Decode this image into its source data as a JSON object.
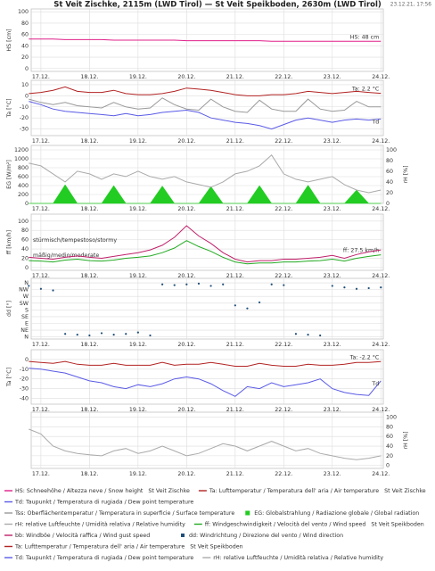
{
  "header": {
    "title": "St Veit Zischke, 2115m (LWD Tirol) — St Veit Speikboden, 2630m (LWD Tirol)",
    "timestamp": "23.12.21, 17:56"
  },
  "time": {
    "x": [
      16.75,
      17,
      17.25,
      17.5,
      17.75,
      18,
      18.25,
      18.5,
      18.75,
      19,
      19.25,
      19.5,
      19.75,
      20,
      20.25,
      20.5,
      20.75,
      21,
      21.25,
      21.5,
      21.75,
      22,
      22.25,
      22.5,
      22.75,
      23,
      23.25,
      23.5,
      23.75,
      24
    ],
    "xlim": [
      16.8,
      24.05
    ],
    "xticks": [
      {
        "value": 17,
        "label": "17.12."
      },
      {
        "value": 18,
        "label": "18.12."
      },
      {
        "value": 19,
        "label": "19.12."
      },
      {
        "value": 20,
        "label": "20.12."
      },
      {
        "value": 21,
        "label": "21.12."
      },
      {
        "value": 22,
        "label": "22.12."
      },
      {
        "value": 23,
        "label": "23.12."
      },
      {
        "value": 24,
        "label": "24.12."
      }
    ]
  },
  "chart_data": [
    {
      "type": "line",
      "ylabel": "HS [cm]",
      "ylim": [
        -5,
        105
      ],
      "yticks": [
        0,
        20,
        40,
        60,
        80,
        100
      ],
      "grid": true,
      "series": [
        {
          "name": "HS: Schneehöhe / Altezza neve / Snow height",
          "station": "St Veit Zischke",
          "color": "#e0208a",
          "end_label": "HS: 48 cm",
          "values": [
            52,
            52,
            52,
            51,
            51,
            51,
            51,
            50,
            50,
            50,
            50,
            50,
            50,
            49,
            49,
            49,
            49,
            49,
            49,
            49,
            48,
            48,
            48,
            48,
            48,
            48,
            48,
            48,
            48,
            48
          ]
        }
      ]
    },
    {
      "type": "line",
      "ylabel": "Ta [°C]",
      "ylim": [
        -36,
        14
      ],
      "yticks": [
        10,
        0,
        -10,
        -20,
        -30
      ],
      "grid": true,
      "series": [
        {
          "name": "Ta: Lufttemperatur / Temperatura dell' aria / Air temperature",
          "station": "St Veit Zischke",
          "color": "#b22222",
          "end_label": "Ta: 2.2 °C",
          "values": [
            2,
            3,
            5,
            8,
            4,
            3,
            3,
            5,
            2,
            1,
            1,
            2,
            4,
            7,
            6,
            5,
            3,
            1,
            0,
            0,
            1,
            1,
            2,
            4,
            3,
            2,
            3,
            4,
            3,
            2.2
          ]
        },
        {
          "name": "Td: Taupunkt / Temperatura di rugiada / Dew point temperature",
          "color": "#5a5ae6",
          "end_label": "Td",
          "values": [
            -5,
            -8,
            -12,
            -14,
            -15,
            -16,
            -17,
            -18,
            -16,
            -18,
            -17,
            -15,
            -14,
            -13,
            -15,
            -20,
            -22,
            -24,
            -25,
            -27,
            -30,
            -26,
            -22,
            -20,
            -22,
            -24,
            -22,
            -21,
            -22,
            -21
          ]
        },
        {
          "name": "Tss: Oberflächentemperatur / Temperatura in superficie / Surface temperature",
          "color": "#999999",
          "values": [
            -3,
            -6,
            -8,
            -6,
            -9,
            -10,
            -11,
            -6,
            -10,
            -12,
            -11,
            -2,
            -8,
            -12,
            -13,
            -3,
            -10,
            -14,
            -15,
            -4,
            -12,
            -14,
            -14,
            -3,
            -12,
            -14,
            -13,
            -5,
            -10,
            -10
          ]
        }
      ]
    },
    {
      "type": "line",
      "ylabel": "EG [W/m²]",
      "ylim": [
        0,
        1300
      ],
      "yticks": [
        0,
        200,
        400,
        600,
        800,
        1000,
        1200
      ],
      "y2label": "rH [%]",
      "y2lim": [
        0,
        108
      ],
      "y2ticks": [
        0,
        20,
        40,
        60,
        80,
        100
      ],
      "grid": true,
      "series": [
        {
          "name": "EG: Globalstrahlung / Radiazione globale / Global radiation",
          "color": "#22cc22",
          "style": "area",
          "values": [
            0,
            0,
            0,
            420,
            0,
            0,
            0,
            400,
            0,
            0,
            0,
            390,
            0,
            0,
            0,
            380,
            0,
            0,
            0,
            400,
            0,
            0,
            0,
            410,
            0,
            0,
            0,
            300,
            0,
            0
          ]
        },
        {
          "name": "rH: relative Luftfeuchte / Umidità relativa / Relative humidity",
          "color": "#aaaaaa",
          "axis": "y2",
          "values": [
            75,
            70,
            55,
            40,
            60,
            55,
            45,
            55,
            50,
            60,
            50,
            45,
            50,
            40,
            35,
            30,
            40,
            55,
            60,
            70,
            90,
            55,
            45,
            40,
            45,
            50,
            35,
            25,
            20,
            25
          ]
        }
      ]
    },
    {
      "type": "line",
      "ylabel": "ff [km/h]",
      "ylim": [
        -6,
        115
      ],
      "yticks": [
        0,
        20,
        40,
        60,
        80,
        100
      ],
      "grid": true,
      "annotations": [
        "stürmisch/tempestoso/stormy",
        "mäßig/medio/moderate"
      ],
      "series": [
        {
          "name": "ff: Windgeschwindigkeit / Velocità del vento / Wind speed",
          "station": "St Veit Speikboden",
          "color": "#22aa22",
          "end_label": "ff: 27.5 km/h",
          "values": [
            15,
            14,
            12,
            16,
            18,
            15,
            14,
            16,
            20,
            22,
            25,
            32,
            42,
            58,
            45,
            35,
            22,
            12,
            8,
            10,
            10,
            12,
            12,
            14,
            15,
            18,
            14,
            20,
            24,
            27.5
          ]
        },
        {
          "name": "bb: Windböe / Velocità raffica / Wind gust speed",
          "color": "#c0206a",
          "values": [
            22,
            20,
            18,
            22,
            25,
            22,
            20,
            24,
            28,
            32,
            38,
            48,
            65,
            90,
            68,
            52,
            32,
            18,
            12,
            15,
            15,
            18,
            18,
            20,
            22,
            26,
            20,
            28,
            34,
            38
          ]
        }
      ]
    },
    {
      "type": "scatter",
      "ylabel": "dd [°]",
      "ylim": [
        -14,
        390
      ],
      "yticks": [
        {
          "value": 360,
          "label": "N"
        },
        {
          "value": 315,
          "label": "NW"
        },
        {
          "value": 270,
          "label": "W"
        },
        {
          "value": 225,
          "label": "SW"
        },
        {
          "value": 180,
          "label": "S"
        },
        {
          "value": 135,
          "label": "SE"
        },
        {
          "value": 90,
          "label": "E"
        },
        {
          "value": 45,
          "label": "NE"
        },
        {
          "value": 0,
          "label": "N"
        }
      ],
      "grid": true,
      "series": [
        {
          "name": "dd: Windrichtung / Direzione del vento / Wind direction",
          "color": "#1f4e79",
          "values": [
            340,
            320,
            310,
            20,
            15,
            10,
            25,
            15,
            20,
            30,
            10,
            350,
            345,
            350,
            355,
            340,
            350,
            210,
            190,
            230,
            350,
            345,
            20,
            15,
            10,
            340,
            330,
            320,
            325,
            330
          ]
        }
      ]
    },
    {
      "type": "line",
      "ylabel": "Ta [°C]",
      "ylim": [
        -46,
        10
      ],
      "yticks": [
        0,
        -10,
        -20,
        -30,
        -40
      ],
      "grid": true,
      "series": [
        {
          "name": "Ta: Lufttemperatur / Temperatura dell' aria / Air temperature",
          "station": "St Veit Speikboden",
          "color": "#b22222",
          "end_label": "Ta: -2.2 °C",
          "values": [
            -2,
            -3,
            -4,
            -2,
            -5,
            -6,
            -6,
            -4,
            -6,
            -6,
            -6,
            -3,
            -6,
            -5,
            -5,
            -3,
            -5,
            -7,
            -7,
            -4,
            -6,
            -7,
            -7,
            -5,
            -6,
            -6,
            -5,
            -3,
            -3,
            -2.2
          ]
        },
        {
          "name": "Td: Taupunkt / Temperatura di rugiada / Dew point temperature",
          "color": "#5a5ae6",
          "end_label": "Td",
          "values": [
            -9,
            -10,
            -12,
            -14,
            -18,
            -22,
            -24,
            -28,
            -30,
            -26,
            -28,
            -25,
            -20,
            -18,
            -20,
            -25,
            -32,
            -38,
            -28,
            -30,
            -24,
            -28,
            -26,
            -24,
            -20,
            -30,
            -34,
            -36,
            -37,
            -22
          ]
        }
      ]
    },
    {
      "type": "line",
      "y2label": "rH [%]",
      "y2lim": [
        -6,
        110
      ],
      "y2ticks": [
        0,
        20,
        40,
        60,
        80,
        100
      ],
      "grid": true,
      "series": [
        {
          "name": "rH: relative Luftfeuchte / Umidità relativa / Relative humidity",
          "color": "#aaaaaa",
          "axis": "y2",
          "values": [
            75,
            65,
            40,
            30,
            25,
            22,
            20,
            30,
            35,
            25,
            30,
            40,
            30,
            20,
            25,
            35,
            45,
            40,
            30,
            40,
            50,
            40,
            30,
            35,
            25,
            20,
            15,
            12,
            15,
            20
          ]
        }
      ]
    }
  ]
}
